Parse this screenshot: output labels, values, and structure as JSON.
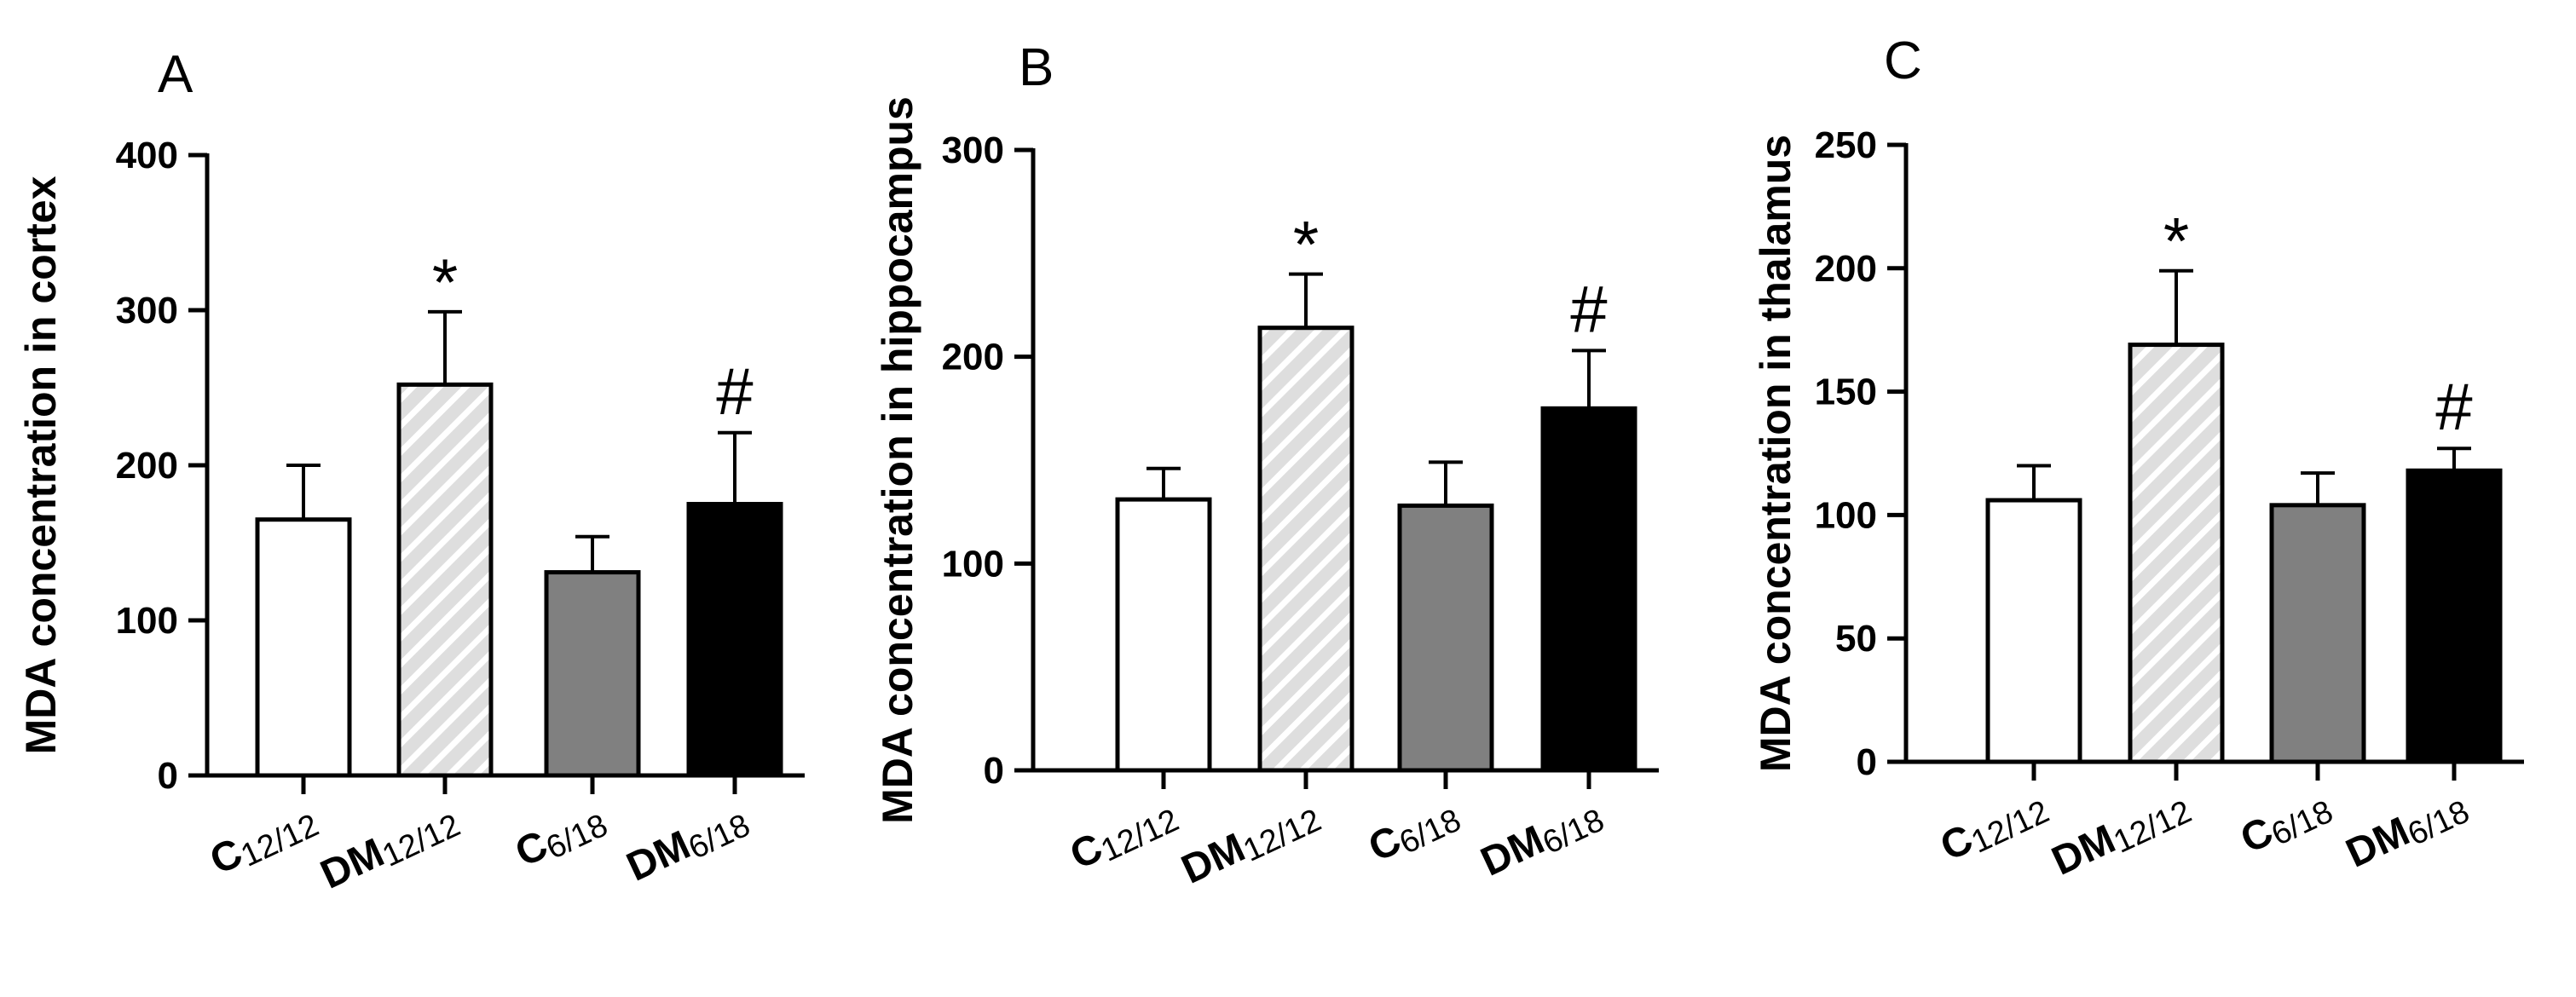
{
  "chart_data": [
    {
      "type": "bar",
      "panel_label": "A",
      "ylabel": "MDA concentration in cortex",
      "ylim": [
        0,
        400
      ],
      "yticks": [
        0,
        100,
        200,
        300,
        400
      ],
      "categories": [
        {
          "main": "C",
          "sub": "12/12"
        },
        {
          "main": "DM",
          "sub": "12/12"
        },
        {
          "main": "C",
          "sub": "6/18"
        },
        {
          "main": "DM",
          "sub": "6/18"
        }
      ],
      "values": [
        165,
        252,
        131,
        175
      ],
      "errors": [
        35,
        47,
        23,
        46
      ],
      "annotations": [
        "",
        "*",
        "",
        "#"
      ],
      "fills": [
        "white",
        "hatch",
        "#808080",
        "#000000"
      ]
    },
    {
      "type": "bar",
      "panel_label": "B",
      "ylabel": "MDA concentration in hippocampus",
      "ylim": [
        0,
        300
      ],
      "yticks": [
        0,
        100,
        200,
        300
      ],
      "categories": [
        {
          "main": "C",
          "sub": "12/12"
        },
        {
          "main": "DM",
          "sub": "12/12"
        },
        {
          "main": "C",
          "sub": "6/18"
        },
        {
          "main": "DM",
          "sub": "6/18"
        }
      ],
      "values": [
        131,
        214,
        128,
        175
      ],
      "errors": [
        15,
        26,
        21,
        28
      ],
      "annotations": [
        "",
        "*",
        "",
        "#"
      ],
      "fills": [
        "white",
        "hatch",
        "#808080",
        "#000000"
      ]
    },
    {
      "type": "bar",
      "panel_label": "C",
      "ylabel": "MDA concentration in thalamus",
      "ylim": [
        0,
        250
      ],
      "yticks": [
        0,
        50,
        100,
        150,
        200,
        250
      ],
      "categories": [
        {
          "main": "C",
          "sub": "12/12"
        },
        {
          "main": "DM",
          "sub": "12/12"
        },
        {
          "main": "C",
          "sub": "6/18"
        },
        {
          "main": "DM",
          "sub": "6/18"
        }
      ],
      "values": [
        106,
        169,
        104,
        118
      ],
      "errors": [
        14,
        30,
        13,
        9
      ],
      "annotations": [
        "",
        "*",
        "",
        "#"
      ],
      "fills": [
        "white",
        "hatch",
        "#808080",
        "#000000"
      ]
    }
  ]
}
